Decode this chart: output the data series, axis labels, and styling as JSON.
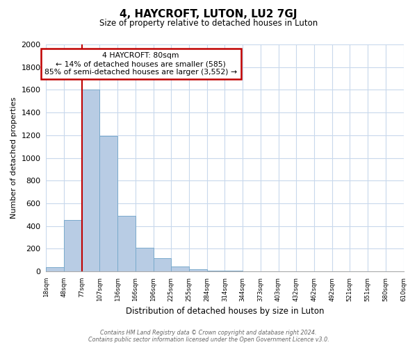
{
  "title": "4, HAYCROFT, LUTON, LU2 7GJ",
  "subtitle": "Size of property relative to detached houses in Luton",
  "xlabel": "Distribution of detached houses by size in Luton",
  "ylabel": "Number of detached properties",
  "bin_labels": [
    "18sqm",
    "48sqm",
    "77sqm",
    "107sqm",
    "136sqm",
    "166sqm",
    "196sqm",
    "225sqm",
    "255sqm",
    "284sqm",
    "314sqm",
    "344sqm",
    "373sqm",
    "403sqm",
    "432sqm",
    "462sqm",
    "492sqm",
    "521sqm",
    "551sqm",
    "580sqm",
    "610sqm"
  ],
  "bar_values": [
    35,
    455,
    1600,
    1190,
    490,
    210,
    115,
    45,
    18,
    10,
    5,
    0,
    0,
    0,
    0,
    0,
    0,
    0,
    0,
    0
  ],
  "bar_color": "#b8cce4",
  "bar_edge_color": "#7aaacc",
  "marker_line_color": "#c00000",
  "marker_bar_index": 2,
  "ylim": [
    0,
    2000
  ],
  "yticks": [
    0,
    200,
    400,
    600,
    800,
    1000,
    1200,
    1400,
    1600,
    1800,
    2000
  ],
  "annotation_line1": "4 HAYCROFT: 80sqm",
  "annotation_line2": "← 14% of detached houses are smaller (585)",
  "annotation_line3": "85% of semi-detached houses are larger (3,552) →",
  "annotation_box_color": "#ffffff",
  "annotation_box_edgecolor": "#c00000",
  "footer_text": "Contains HM Land Registry data © Crown copyright and database right 2024.\nContains public sector information licensed under the Open Government Licence v3.0.",
  "fig_width": 6.0,
  "fig_height": 5.0,
  "background_color": "#ffffff",
  "grid_color": "#c8d8ec"
}
